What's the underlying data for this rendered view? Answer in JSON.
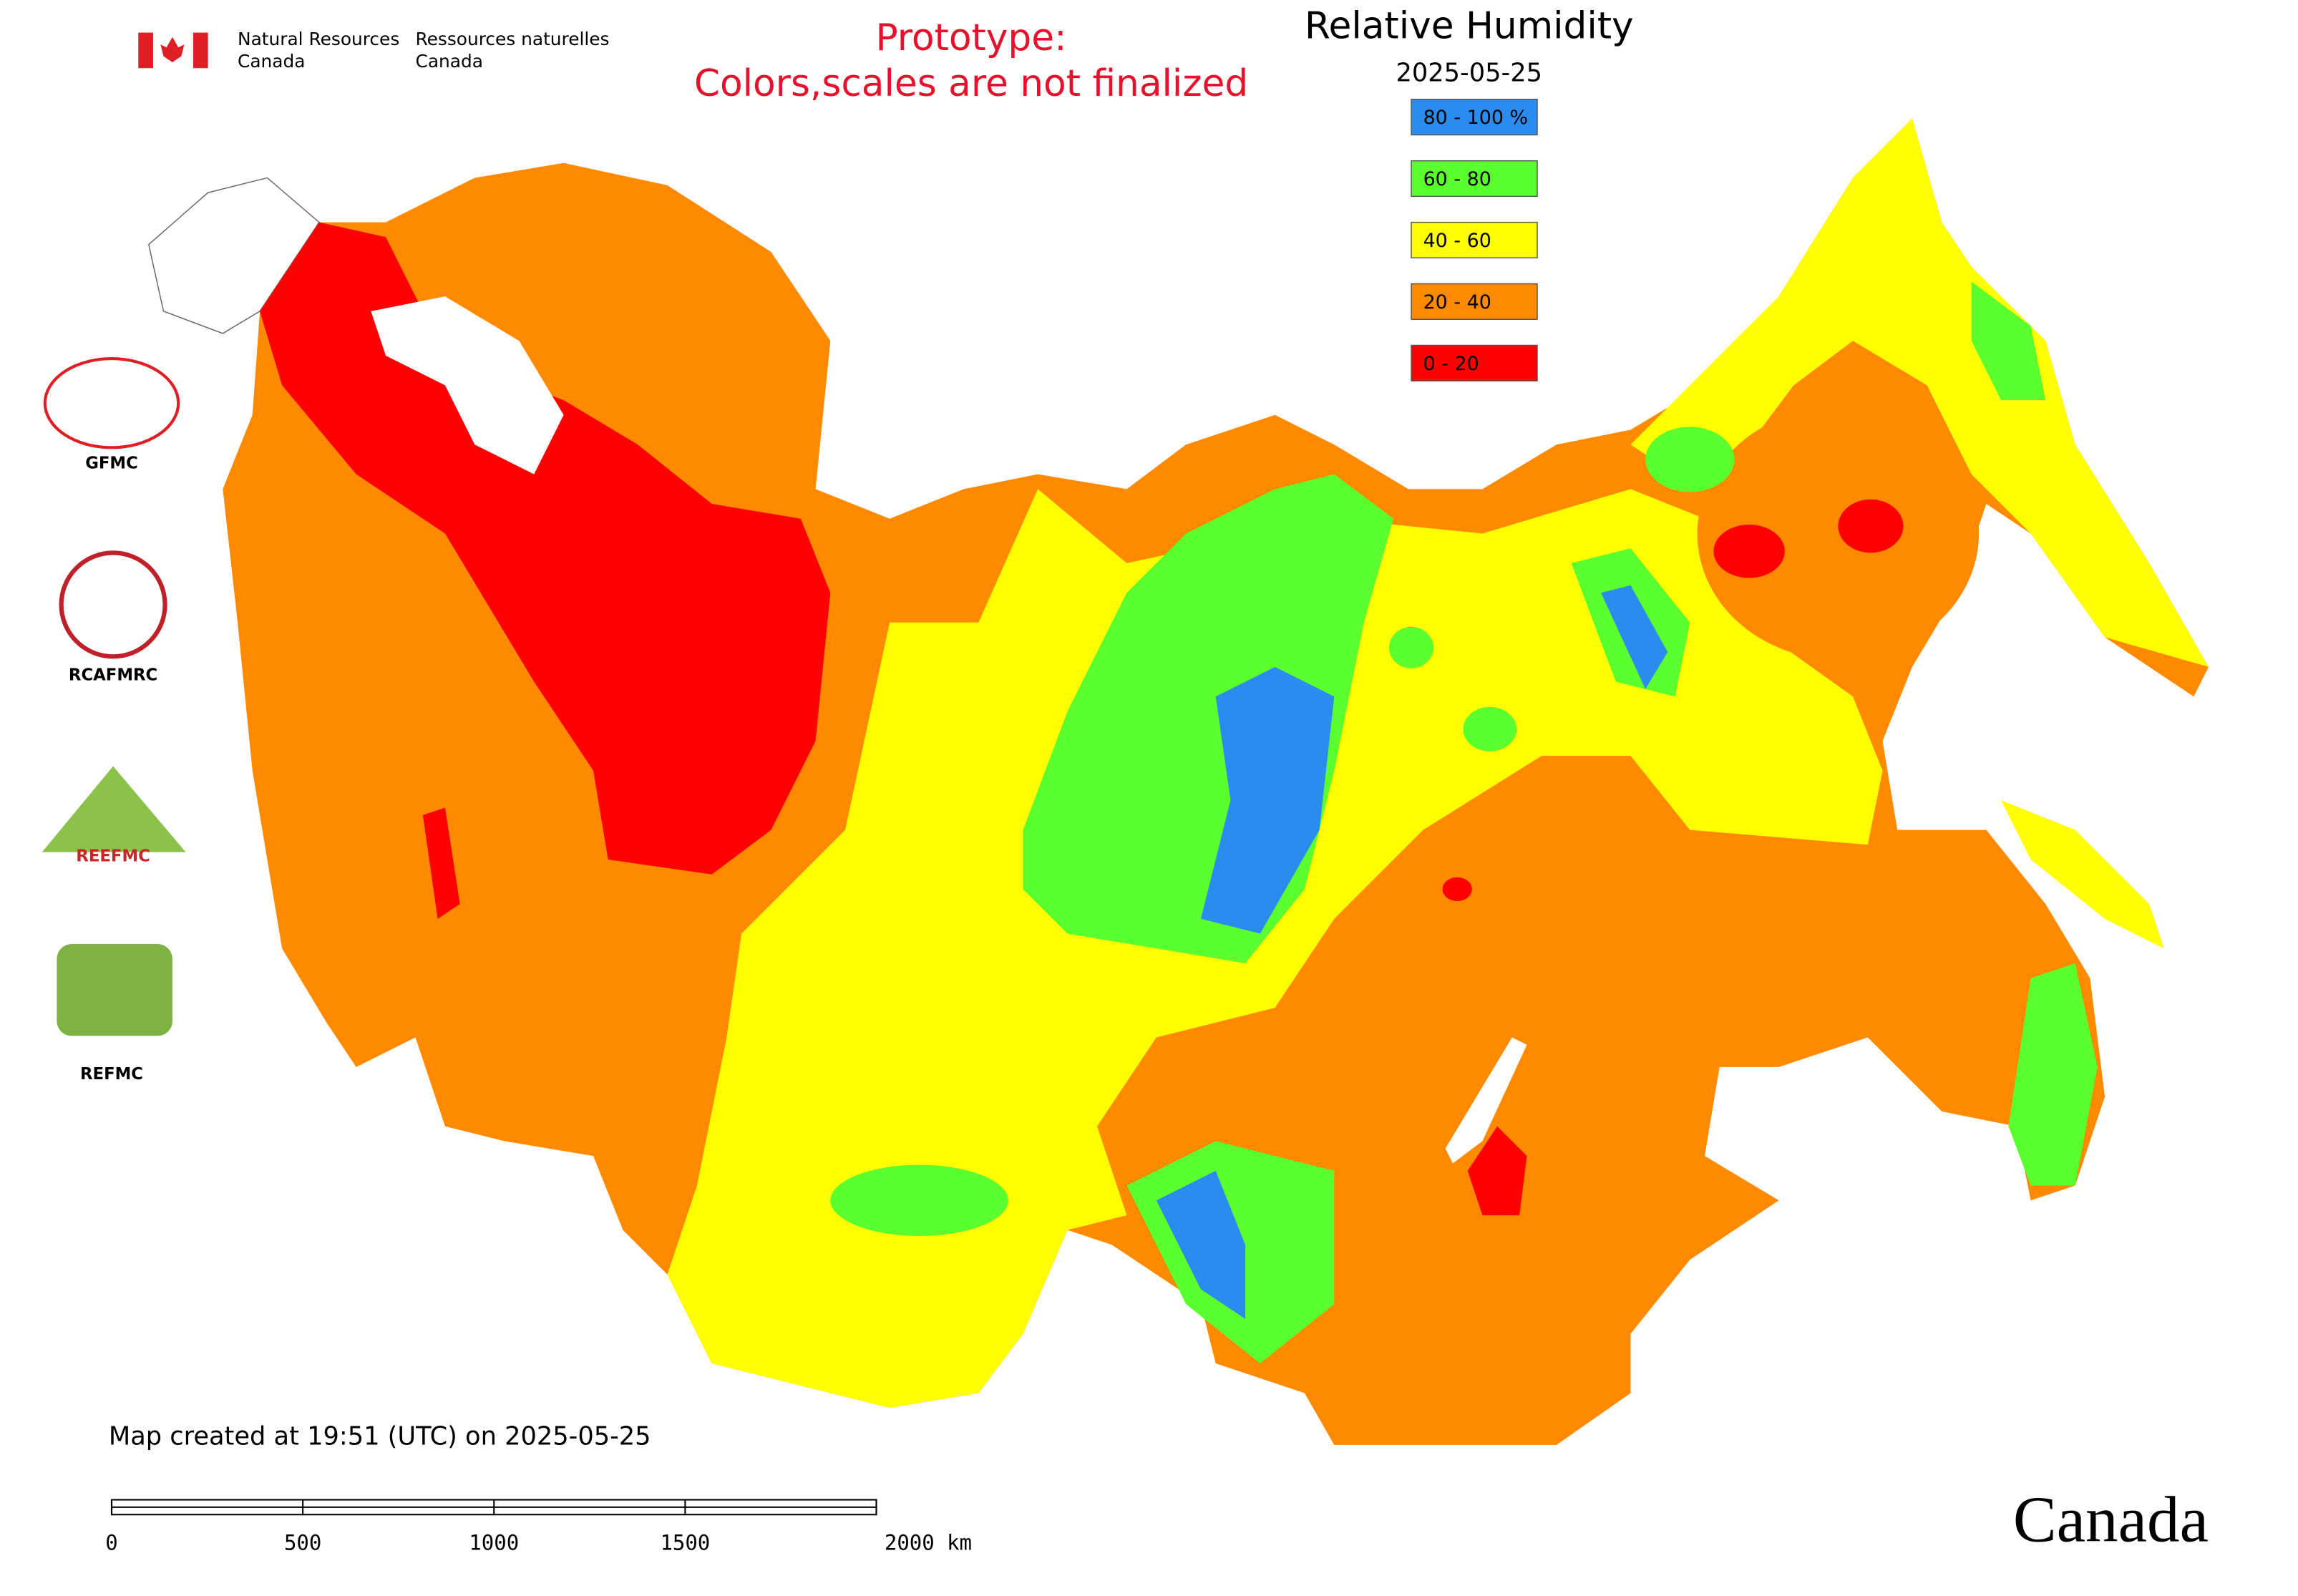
{
  "header": {
    "agency_en": "Natural Resources",
    "agency_en_2": "Canada",
    "agency_fr": "Ressources naturelles",
    "agency_fr_2": "Canada",
    "notice_1": "Prototype:",
    "notice_2": "Colors,scales are not finalized"
  },
  "title": "Relative Humidity",
  "date": "2025-05-25",
  "legend": {
    "items": [
      {
        "label": "80 - 100 %",
        "color": "#2b8cf0"
      },
      {
        "label": "60 - 80",
        "color": "#5cff2e"
      },
      {
        "label": "40 - 60",
        "color": "#ffff00"
      },
      {
        "label": "20 - 40",
        "color": "#ff8a00"
      },
      {
        "label": "0 - 20",
        "color": "#ff0000"
      }
    ]
  },
  "logos": {
    "gfmc": "GFMC",
    "rcafmrc": "RCAFMRC",
    "reefmc": "REEFMC",
    "refmc": "REFMC"
  },
  "footer": {
    "created": "Map created at 19:51 (UTC) on 2025-05-25",
    "wordmark": "Canada"
  },
  "scale_bar": {
    "labels": [
      "0",
      "500",
      "1000",
      "1500",
      "2000 km"
    ]
  }
}
